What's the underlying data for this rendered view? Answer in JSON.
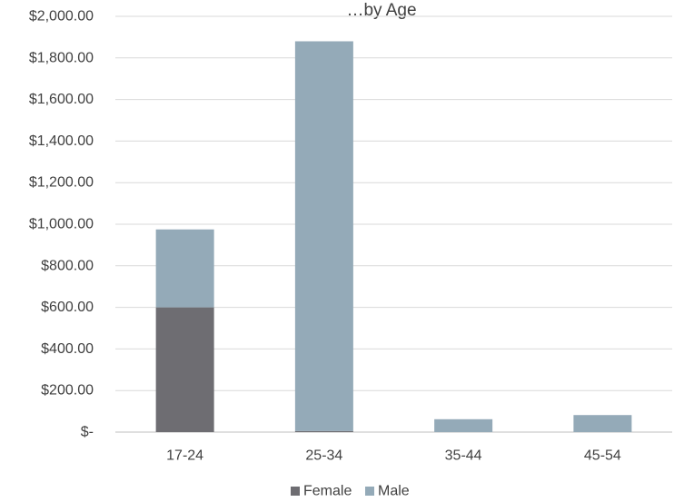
{
  "chart_data": {
    "type": "bar",
    "stacked": true,
    "title": "…by Age",
    "categories": [
      "17-24",
      "25-34",
      "35-44",
      "45-54"
    ],
    "series": [
      {
        "name": "Female",
        "values": [
          600,
          5,
          0,
          0
        ],
        "color": "#6e6d72"
      },
      {
        "name": "Male",
        "values": [
          375,
          1875,
          62,
          82
        ],
        "color": "#94aab8"
      }
    ],
    "ylim": [
      0,
      2000
    ],
    "yticks": [
      0,
      200,
      400,
      600,
      800,
      1000,
      1200,
      1400,
      1600,
      1800,
      2000
    ],
    "ytick_labels": [
      "$-",
      "$200.00",
      "$400.00",
      "$600.00",
      "$800.00",
      "$1,000.00",
      "$1,200.00",
      "$1,400.00",
      "$1,600.00",
      "$1,800.00",
      "$2,000.00"
    ],
    "grid": true,
    "legend_position": "bottom",
    "xlabel": "",
    "ylabel": ""
  }
}
